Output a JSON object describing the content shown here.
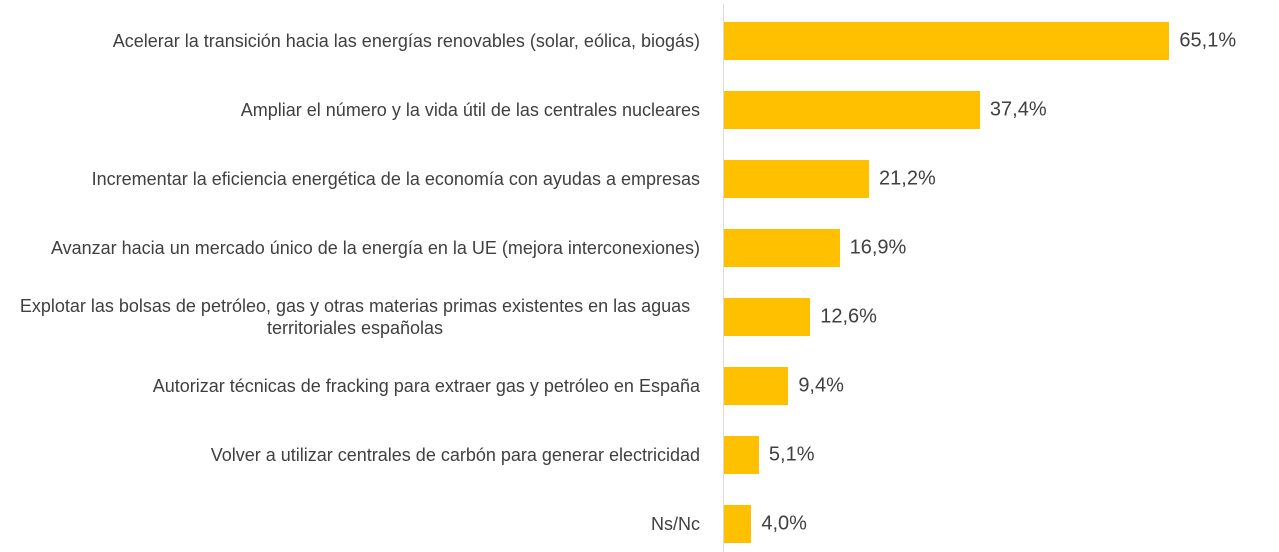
{
  "chart_data": {
    "type": "bar",
    "orientation": "horizontal",
    "categories": [
      "Acelerar la transición hacia las energías renovables (solar, eólica, biogás)",
      "Ampliar el número y la vida útil de las centrales nucleares",
      "Incrementar la eficiencia energética de la economía con ayudas a empresas",
      "Avanzar hacia un mercado único de la energía en la UE (mejora interconexiones)",
      "Explotar las bolsas de petróleo, gas y otras materias primas existentes en las aguas territoriales españolas",
      "Autorizar técnicas de fracking para extraer gas y petróleo en España",
      "Volver a utilizar centrales de carbón para generar electricidad",
      "Ns/Nc"
    ],
    "values": [
      65.1,
      37.4,
      21.2,
      16.9,
      12.6,
      9.4,
      5.1,
      4.0
    ],
    "value_labels": [
      "65,1%",
      "37,4%",
      "21,2%",
      "16,9%",
      "12,6%",
      "9,4%",
      "5,1%",
      "4,0%"
    ],
    "color": "#ffc000",
    "xlim": [
      0,
      95
    ]
  }
}
